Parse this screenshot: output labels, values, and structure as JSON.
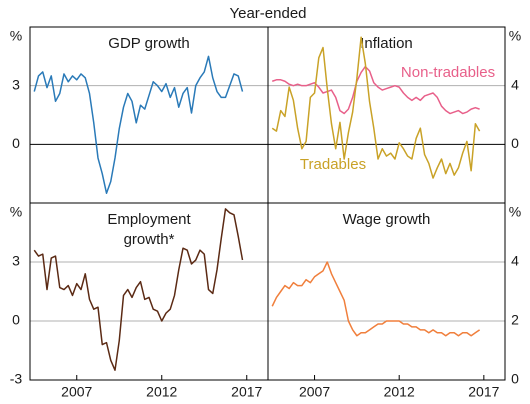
{
  "title": "Year-ended",
  "chart_data": [
    {
      "type": "line",
      "title": [
        "GDP growth"
      ],
      "axis_side": "left",
      "y_unit": "%",
      "zero_line": true,
      "xlim": [
        2004.25,
        2018.25
      ],
      "ylim": [
        -3,
        6
      ],
      "yticks": [
        3,
        0
      ],
      "x": [
        2004.5,
        2004.75,
        2005,
        2005.25,
        2005.5,
        2005.75,
        2006,
        2006.25,
        2006.5,
        2006.75,
        2007,
        2007.25,
        2007.5,
        2007.75,
        2008,
        2008.25,
        2008.5,
        2008.75,
        2009,
        2009.25,
        2009.5,
        2009.75,
        2010,
        2010.25,
        2010.5,
        2010.75,
        2011,
        2011.25,
        2011.5,
        2011.75,
        2012,
        2012.25,
        2012.5,
        2012.75,
        2013,
        2013.25,
        2013.5,
        2013.75,
        2014,
        2014.25,
        2014.5,
        2014.75,
        2015,
        2015.25,
        2015.5,
        2015.75,
        2016,
        2016.25,
        2016.5,
        2016.75
      ],
      "series": [
        {
          "name": null,
          "color": "#2a7ab8",
          "values": [
            2.7,
            3.5,
            3.7,
            2.9,
            3.5,
            2.2,
            2.6,
            3.6,
            3.2,
            3.5,
            3.3,
            3.6,
            3.4,
            2.6,
            1.1,
            -0.7,
            -1.5,
            -2.5,
            -1.9,
            -0.7,
            0.8,
            1.9,
            2.6,
            2.2,
            1.1,
            2.0,
            1.8,
            2.5,
            3.2,
            3.0,
            2.7,
            3.1,
            2.4,
            2.9,
            1.9,
            2.6,
            2.9,
            1.6,
            3.0,
            3.4,
            3.7,
            4.5,
            3.4,
            2.7,
            2.4,
            2.4,
            3.0,
            3.6,
            3.5,
            2.7
          ]
        }
      ]
    },
    {
      "type": "line",
      "title": [
        "Inflation"
      ],
      "axis_side": "right",
      "y_unit": "%",
      "zero_line": true,
      "xlim": [
        2004.25,
        2018.25
      ],
      "ylim": [
        -4,
        8
      ],
      "yticks": [
        4,
        0
      ],
      "x": [
        2004.5,
        2004.75,
        2005,
        2005.25,
        2005.5,
        2005.75,
        2006,
        2006.25,
        2006.5,
        2006.75,
        2007,
        2007.25,
        2007.5,
        2007.75,
        2008,
        2008.25,
        2008.5,
        2008.75,
        2009,
        2009.25,
        2009.5,
        2009.75,
        2010,
        2010.25,
        2010.5,
        2010.75,
        2011,
        2011.25,
        2011.5,
        2011.75,
        2012,
        2012.25,
        2012.5,
        2012.75,
        2013,
        2013.25,
        2013.5,
        2013.75,
        2014,
        2014.25,
        2014.5,
        2014.75,
        2015,
        2015.25,
        2015.5,
        2015.75,
        2016,
        2016.25,
        2016.5,
        2016.75
      ],
      "series": [
        {
          "name": "Non-tradables",
          "color": "#e8608a",
          "values": [
            4.3,
            4.4,
            4.4,
            4.3,
            4.1,
            4.0,
            4.1,
            4.0,
            4.0,
            4.1,
            4.2,
            3.9,
            3.5,
            3.6,
            3.7,
            3.2,
            2.3,
            2.1,
            2.4,
            3.2,
            4.3,
            4.9,
            5.3,
            5.0,
            4.2,
            3.9,
            3.7,
            3.8,
            3.9,
            4.0,
            3.9,
            3.5,
            3.2,
            3.0,
            3.2,
            3.0,
            3.3,
            3.4,
            3.5,
            3.2,
            2.6,
            2.3,
            2.1,
            2.2,
            2.3,
            2.1,
            2.2,
            2.4,
            2.5,
            2.4
          ]
        },
        {
          "name": "Tradables",
          "color": "#c9a227",
          "values": [
            1.1,
            0.9,
            2.3,
            1.9,
            3.9,
            3.0,
            1.1,
            -0.3,
            0.2,
            3.2,
            3.5,
            5.9,
            6.6,
            3.8,
            1.4,
            -0.3,
            1.5,
            -1.0,
            0.8,
            2.2,
            4.5,
            7.3,
            5.5,
            2.9,
            1.1,
            -1.0,
            -0.3,
            -0.8,
            -0.6,
            -1.0,
            0.1,
            -0.3,
            -0.8,
            -1.0,
            0.4,
            1.1,
            -0.7,
            -1.3,
            -2.3,
            -1.6,
            -1.0,
            -2.0,
            -1.3,
            -2.1,
            -1.6,
            -0.6,
            0.2,
            -1.8,
            1.4,
            0.9
          ]
        }
      ]
    },
    {
      "type": "line",
      "title": [
        "Employment",
        "growth*"
      ],
      "axis_side": "left",
      "y_unit": "%",
      "zero_line": false,
      "xlim": [
        2004.25,
        2018.25
      ],
      "ylim": [
        -3,
        6
      ],
      "yticks": [
        3,
        0,
        -3
      ],
      "xticks": [
        2007,
        2012,
        2017
      ],
      "x": [
        2004.5,
        2004.75,
        2005,
        2005.25,
        2005.5,
        2005.75,
        2006,
        2006.25,
        2006.5,
        2006.75,
        2007,
        2007.25,
        2007.5,
        2007.75,
        2008,
        2008.25,
        2008.5,
        2008.75,
        2009,
        2009.25,
        2009.5,
        2009.75,
        2010,
        2010.25,
        2010.5,
        2010.75,
        2011,
        2011.25,
        2011.5,
        2011.75,
        2012,
        2012.25,
        2012.5,
        2012.75,
        2013,
        2013.25,
        2013.5,
        2013.75,
        2014,
        2014.25,
        2014.5,
        2014.75,
        2015,
        2015.25,
        2015.5,
        2015.75,
        2016,
        2016.25,
        2016.5,
        2016.75
      ],
      "series": [
        {
          "name": null,
          "color": "#5b2a14",
          "values": [
            3.6,
            3.3,
            3.4,
            1.6,
            3.2,
            3.3,
            1.7,
            1.6,
            1.8,
            1.3,
            1.9,
            1.6,
            2.4,
            1.1,
            0.6,
            0.7,
            -1.2,
            -1.1,
            -2.0,
            -2.5,
            -1.0,
            1.3,
            1.6,
            1.2,
            1.7,
            2.0,
            1.1,
            1.2,
            0.6,
            0.5,
            0.0,
            0.4,
            0.6,
            1.3,
            2.6,
            3.7,
            3.6,
            2.9,
            3.1,
            3.6,
            3.4,
            1.6,
            1.4,
            2.6,
            4.2,
            5.7,
            5.5,
            5.4,
            4.3,
            3.1
          ]
        }
      ]
    },
    {
      "type": "line",
      "title": [
        "Wage growth"
      ],
      "axis_side": "right",
      "y_unit": "%",
      "zero_line": false,
      "xlim": [
        2004.25,
        2018.25
      ],
      "ylim": [
        0,
        6
      ],
      "yticks": [
        4,
        2,
        0
      ],
      "xticks": [
        2007,
        2012,
        2017
      ],
      "x": [
        2004.5,
        2004.75,
        2005,
        2005.25,
        2005.5,
        2005.75,
        2006,
        2006.25,
        2006.5,
        2006.75,
        2007,
        2007.25,
        2007.5,
        2007.75,
        2008,
        2008.25,
        2008.5,
        2008.75,
        2009,
        2009.25,
        2009.5,
        2009.75,
        2010,
        2010.25,
        2010.5,
        2010.75,
        2011,
        2011.25,
        2011.5,
        2011.75,
        2012,
        2012.25,
        2012.5,
        2012.75,
        2013,
        2013.25,
        2013.5,
        2013.75,
        2014,
        2014.25,
        2014.5,
        2014.75,
        2015,
        2015.25,
        2015.5,
        2015.75,
        2016,
        2016.25,
        2016.5,
        2016.75
      ],
      "series": [
        {
          "name": null,
          "color": "#f07f3c",
          "values": [
            2.5,
            2.8,
            3.0,
            3.2,
            3.1,
            3.3,
            3.2,
            3.2,
            3.4,
            3.3,
            3.5,
            3.6,
            3.7,
            4.0,
            3.6,
            3.3,
            3.0,
            2.7,
            2.0,
            1.7,
            1.5,
            1.6,
            1.6,
            1.7,
            1.8,
            1.9,
            1.9,
            2.0,
            2.0,
            2.0,
            2.0,
            1.9,
            1.9,
            1.8,
            1.8,
            1.7,
            1.7,
            1.6,
            1.7,
            1.6,
            1.6,
            1.5,
            1.6,
            1.6,
            1.5,
            1.6,
            1.6,
            1.5,
            1.6,
            1.7
          ]
        }
      ]
    }
  ]
}
